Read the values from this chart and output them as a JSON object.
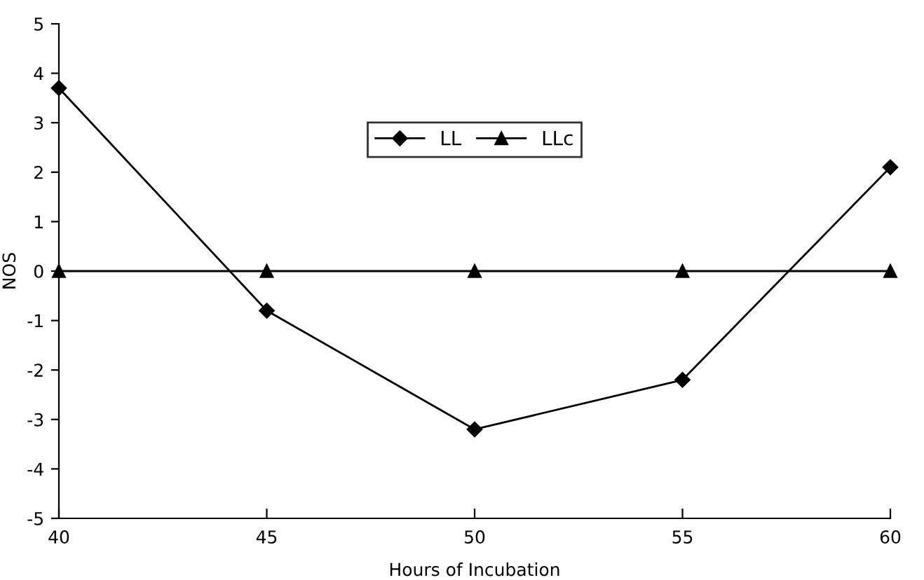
{
  "chart_data": {
    "type": "line",
    "xlabel": "Hours of Incubation",
    "ylabel": "NOS",
    "x": [
      40,
      45,
      50,
      55,
      60
    ],
    "series": [
      {
        "name": "LL",
        "color": "#000000",
        "marker": "diamond",
        "values": [
          3.7,
          -0.8,
          -3.2,
          -2.2,
          2.1
        ]
      },
      {
        "name": "LLc",
        "color": "#000000",
        "marker": "triangle",
        "values": [
          0,
          0,
          0,
          0,
          0
        ]
      }
    ],
    "xlim": [
      40,
      60
    ],
    "xticks": [
      40,
      45,
      50,
      55,
      60
    ],
    "ylim": [
      -5,
      5
    ],
    "yticks": [
      -5,
      -4,
      -3,
      -2,
      -1,
      0,
      1,
      2,
      3,
      4,
      5
    ],
    "grid": false,
    "legend": "top",
    "line_style": "solid"
  }
}
